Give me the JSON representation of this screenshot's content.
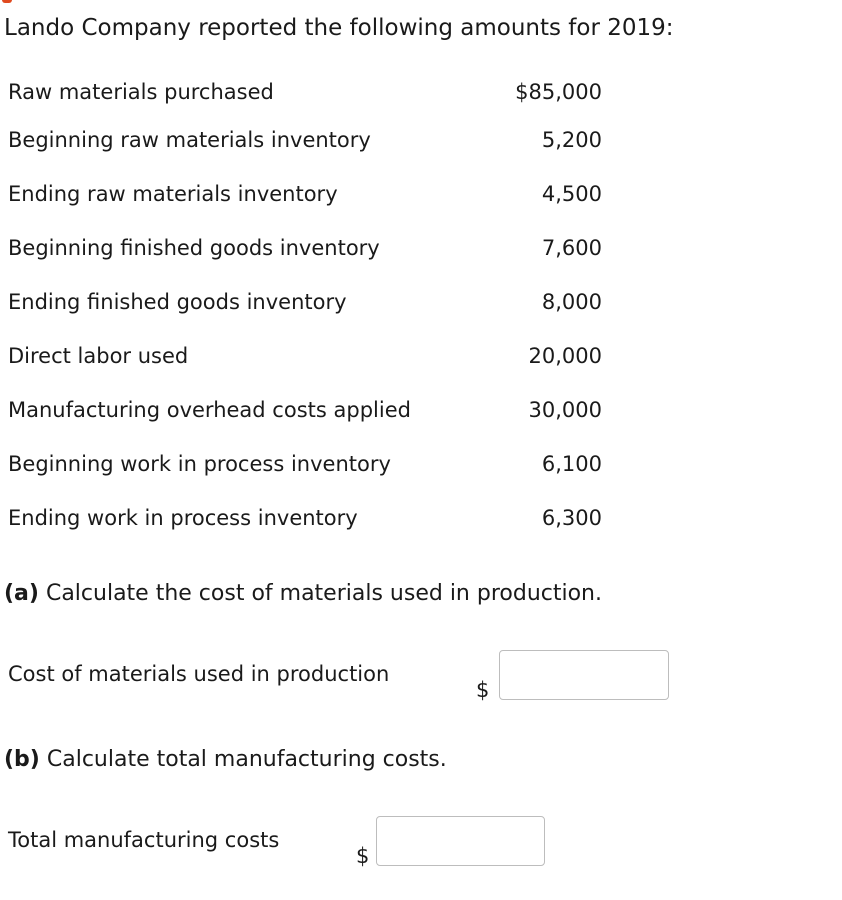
{
  "intro": "Lando Company reported the following amounts for 2019:",
  "items": [
    {
      "label": "Raw materials purchased",
      "value": "$85,000"
    },
    {
      "label": "Beginning raw materials inventory",
      "value": "5,200"
    },
    {
      "label": "Ending raw materials inventory",
      "value": "4,500"
    },
    {
      "label": "Beginning finished goods inventory",
      "value": "7,600"
    },
    {
      "label": "Ending finished goods inventory",
      "value": "8,000"
    },
    {
      "label": "Direct labor used",
      "value": "20,000"
    },
    {
      "label": "Manufacturing overhead costs applied",
      "value": "30,000"
    },
    {
      "label": "Beginning work in process inventory",
      "value": "6,100"
    },
    {
      "label": "Ending work in process inventory",
      "value": "6,300"
    }
  ],
  "part_a": {
    "letter": "(a)",
    "text": "Calculate the cost of materials used in production.",
    "answer_label": "Cost of materials used in production",
    "currency": "$",
    "value": ""
  },
  "part_b": {
    "letter": "(b)",
    "text": "Calculate total manufacturing costs.",
    "answer_label": "Total manufacturing costs",
    "currency": "$",
    "value": ""
  }
}
